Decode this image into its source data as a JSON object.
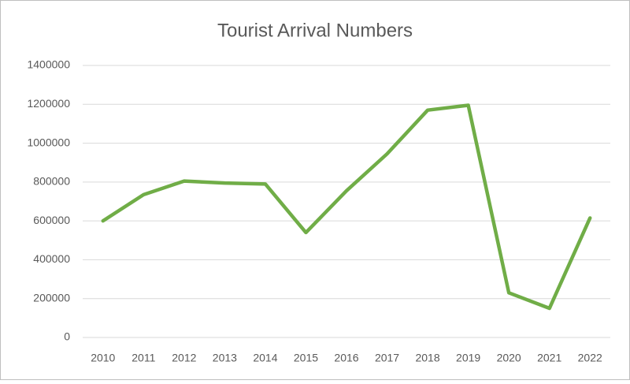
{
  "chart_data": {
    "type": "line",
    "title": "Tourist Arrival Numbers",
    "categories": [
      "2010",
      "2011",
      "2012",
      "2013",
      "2014",
      "2015",
      "2016",
      "2017",
      "2018",
      "2019",
      "2020",
      "2021",
      "2022"
    ],
    "values": [
      600000,
      735000,
      805000,
      795000,
      790000,
      540000,
      755000,
      945000,
      1170000,
      1195000,
      230000,
      150000,
      615000
    ],
    "color": "#70ad47",
    "ylim": [
      0,
      1400000
    ],
    "yticks": [
      0,
      200000,
      400000,
      600000,
      800000,
      1000000,
      1200000,
      1400000
    ],
    "grid": true
  }
}
